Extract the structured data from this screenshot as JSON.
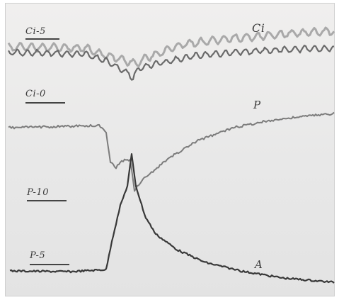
{
  "labels": {
    "ci_5": "Ci-5",
    "ci_0": "Ci-0",
    "p_10": "P-10",
    "p_5": "P-5",
    "ci": "Ci",
    "p": "P",
    "a": "A"
  },
  "colors": {
    "paper": "#e9e9e9",
    "trace_dark": "#3a3a3a",
    "trace_mid": "#707070",
    "trace_light": "#a8a8a8"
  }
}
